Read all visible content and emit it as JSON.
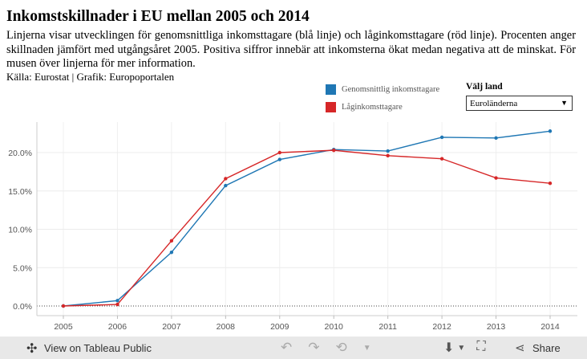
{
  "header": {
    "title": "Inkomstskillnader i EU mellan 2005 och 2014",
    "description": "Linjerna visar utvecklingen för genomsnittliga inkomsttagare (blå linje) och låginkomsttagare (röd linje). Procenten anger skillnaden jämfört med utgångsåret 2005. Positiva siffror innebär att inkomsterna ökat medan negativa att de minskat. För musen över linjerna för mer information.",
    "source": "Källa: Eurostat | Grafik: Europoportalen"
  },
  "legend": {
    "items": [
      {
        "label": "Genomsnittlig inkomsttagare",
        "color": "#1f77b4"
      },
      {
        "label": "Låginkomsttagare",
        "color": "#d62728"
      }
    ]
  },
  "selector": {
    "label": "Välj land",
    "value": "Euroländerna"
  },
  "chart_data": {
    "type": "line",
    "title": "Inkomstskillnader i EU mellan 2005 och 2014",
    "x": [
      "2005",
      "2006",
      "2007",
      "2008",
      "2009",
      "2010",
      "2011",
      "2012",
      "2013",
      "2014"
    ],
    "ylim": [
      0,
      0.25
    ],
    "yticks": [
      0.0,
      0.05,
      0.1,
      0.15,
      0.2
    ],
    "ytick_labels": [
      "0.0%",
      "5.0%",
      "10.0%",
      "15.0%",
      "20.0%"
    ],
    "series": [
      {
        "name": "Genomsnittlig inkomsttagare",
        "color": "#1f77b4",
        "values": [
          0.0,
          0.007,
          0.07,
          0.157,
          0.191,
          0.204,
          0.202,
          0.22,
          0.219,
          0.228
        ]
      },
      {
        "name": "Låginkomsttagare",
        "color": "#d62728",
        "values": [
          0.0,
          0.002,
          0.085,
          0.166,
          0.2,
          0.203,
          0.196,
          0.192,
          0.167,
          0.16
        ]
      }
    ]
  },
  "footer": {
    "view_link": "View on Tableau Public",
    "share_label": "Share"
  }
}
